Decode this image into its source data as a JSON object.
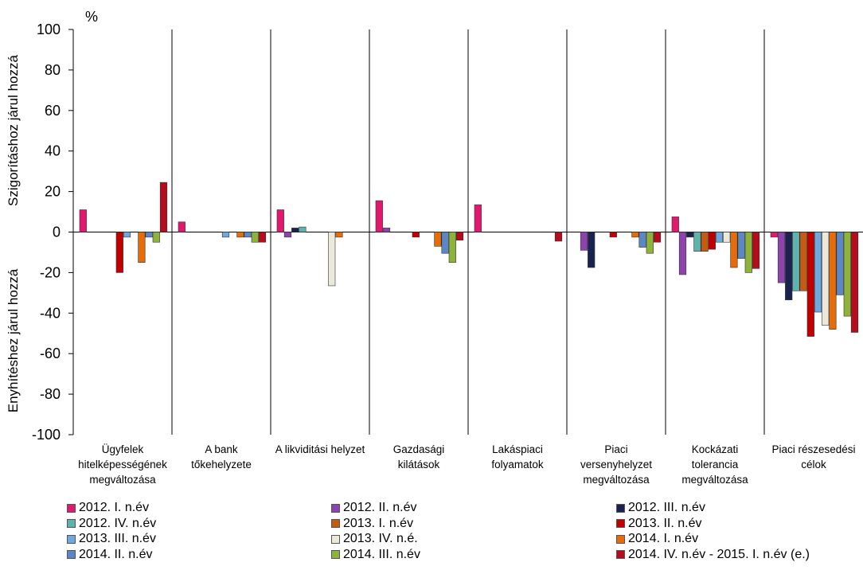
{
  "chart_data": {
    "type": "bar",
    "unit_label": "%",
    "ylabel_top": "Szigorításhoz járul hozzá",
    "ylabel_bottom": "Enyhítéshez járul hozzá",
    "ylim": [
      -100,
      100
    ],
    "yticks": [
      100,
      80,
      60,
      40,
      20,
      0,
      -20,
      -40,
      -60,
      -80,
      -100
    ],
    "grid": false,
    "legend_position": "bottom",
    "categories": [
      [
        "Ügyfelek",
        "hitelképességének",
        "megváltozása"
      ],
      [
        "A bank",
        "tőkehelyzete"
      ],
      [
        "A likviditási helyzet"
      ],
      [
        "Gazdasági",
        "kilátások"
      ],
      [
        "Lakáspiaci",
        "folyamatok"
      ],
      [
        "Piaci",
        "versenyhelyzet",
        "megváltozása"
      ],
      [
        "Kockázati",
        "tolerancia",
        "megváltozása"
      ],
      [
        "Piaci részesedési",
        "célok"
      ]
    ],
    "series": [
      {
        "name": "2012. I. n.év",
        "color": "#e0196e",
        "values": [
          11,
          5,
          11,
          15.5,
          13.5,
          0,
          7.5,
          -2.5
        ]
      },
      {
        "name": "2012. II. n.év",
        "color": "#8e44ad",
        "values": [
          0,
          0,
          -2.5,
          2,
          0,
          -9,
          -21,
          -25
        ]
      },
      {
        "name": "2012. III. n.év",
        "color": "#1a2350",
        "values": [
          0,
          0,
          2,
          0,
          0,
          -17.5,
          -2.5,
          -33.5
        ]
      },
      {
        "name": "2012. IV. n.év",
        "color": "#5fb3ad",
        "values": [
          0,
          0,
          2.5,
          0,
          0,
          0,
          -9.5,
          -29
        ]
      },
      {
        "name": "2013. I. n.év",
        "color": "#c55a11",
        "values": [
          0,
          0,
          0,
          0,
          0,
          0,
          -9.5,
          -29
        ]
      },
      {
        "name": "2013. II. n.év",
        "color": "#c00000",
        "values": [
          -20,
          0,
          0,
          -2.5,
          0,
          -2.5,
          -8.5,
          -51.5
        ]
      },
      {
        "name": "2013. III. n.év",
        "color": "#6fa8dc",
        "values": [
          -2.5,
          -2.5,
          0,
          0,
          0,
          0,
          -5,
          -39.5
        ]
      },
      {
        "name": "2013. IV. n.é.",
        "color": "#ece9d8",
        "values": [
          0,
          0,
          -26.5,
          0,
          0,
          0,
          -5,
          -46
        ]
      },
      {
        "name": "2014. I. n.év",
        "color": "#e46c0a",
        "values": [
          -15,
          -2.5,
          -2.5,
          -7,
          0,
          -2.5,
          -17.5,
          -48
        ]
      },
      {
        "name": "2014. II. n.év",
        "color": "#5b87c5",
        "values": [
          -2.5,
          -2.5,
          0,
          -10.5,
          0,
          -7.5,
          -13,
          -31
        ]
      },
      {
        "name": "2014. III. n.év",
        "color": "#8db33c",
        "values": [
          -5,
          -5,
          0,
          -15,
          0,
          -10.5,
          -20,
          -41.5
        ]
      },
      {
        "name": "2014. IV. n.év - 2015. I. n.év (e.)",
        "color": "#b50d1e",
        "values": [
          24.5,
          -5,
          0,
          -4,
          -4.5,
          -5,
          -18,
          -49.5
        ]
      }
    ]
  }
}
